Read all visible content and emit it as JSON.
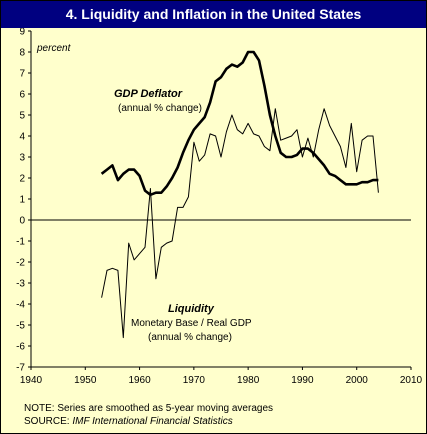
{
  "title": "4. Liquidity and Inflation in the United States",
  "colors": {
    "background": "#ffffcc",
    "title_bar": "#000080",
    "title_text": "#ffffff",
    "line": "#000000"
  },
  "chart_data": {
    "type": "line",
    "title": "4. Liquidity and Inflation in the United States",
    "ylabel": "percent",
    "xlabel": "",
    "xlim": [
      1940,
      2010
    ],
    "ylim": [
      -7,
      9
    ],
    "x_ticks": [
      1940,
      1950,
      1960,
      1970,
      1980,
      1990,
      2000,
      2010
    ],
    "y_ticks": [
      -7,
      -6,
      -5,
      -4,
      -3,
      -2,
      -1,
      0,
      1,
      2,
      3,
      4,
      5,
      6,
      7,
      8,
      9
    ],
    "grid": false,
    "zero_line": true,
    "series": [
      {
        "name": "GDP Deflator",
        "line_style": "thick",
        "x": [
          1953,
          1954,
          1955,
          1956,
          1957,
          1958,
          1959,
          1960,
          1961,
          1962,
          1963,
          1964,
          1965,
          1966,
          1967,
          1968,
          1969,
          1970,
          1971,
          1972,
          1973,
          1974,
          1975,
          1976,
          1977,
          1978,
          1979,
          1980,
          1981,
          1982,
          1983,
          1984,
          1985,
          1986,
          1987,
          1988,
          1989,
          1990,
          1991,
          1992,
          1993,
          1994,
          1995,
          1996,
          1997,
          1998,
          1999,
          2000,
          2001,
          2002,
          2003,
          2004
        ],
        "values": [
          2.2,
          2.4,
          2.6,
          1.9,
          2.2,
          2.4,
          2.4,
          2.1,
          1.4,
          1.2,
          1.3,
          1.3,
          1.6,
          2.0,
          2.5,
          3.2,
          3.8,
          4.3,
          4.6,
          4.9,
          5.6,
          6.6,
          6.8,
          7.2,
          7.4,
          7.3,
          7.5,
          8.0,
          8.0,
          7.6,
          6.4,
          5.0,
          4.0,
          3.2,
          3.0,
          3.0,
          3.1,
          3.4,
          3.4,
          3.2,
          2.9,
          2.6,
          2.2,
          2.1,
          1.9,
          1.7,
          1.7,
          1.7,
          1.8,
          1.8,
          1.9,
          1.9
        ]
      },
      {
        "name": "Liquidity",
        "line_style": "thin",
        "x": [
          1953,
          1954,
          1955,
          1956,
          1957,
          1958,
          1959,
          1960,
          1961,
          1962,
          1963,
          1964,
          1965,
          1966,
          1967,
          1968,
          1969,
          1970,
          1971,
          1972,
          1973,
          1974,
          1975,
          1976,
          1977,
          1978,
          1979,
          1980,
          1981,
          1982,
          1983,
          1984,
          1985,
          1986,
          1987,
          1988,
          1989,
          1990,
          1991,
          1992,
          1993,
          1994,
          1995,
          1996,
          1997,
          1998,
          1999,
          2000,
          2001,
          2002,
          2003,
          2004
        ],
        "values": [
          -3.7,
          -2.4,
          -2.3,
          -2.4,
          -5.6,
          -1.1,
          -1.9,
          -1.6,
          -1.3,
          1.5,
          -2.8,
          -1.3,
          -1.1,
          -1.0,
          0.6,
          0.6,
          1.1,
          3.7,
          2.8,
          3.1,
          4.1,
          4.0,
          3.0,
          4.2,
          5.0,
          4.3,
          4.1,
          4.6,
          4.1,
          4.0,
          3.5,
          3.3,
          5.3,
          3.8,
          3.9,
          4.0,
          4.3,
          3.0,
          3.9,
          3.0,
          4.3,
          5.3,
          4.5,
          4.0,
          3.5,
          2.5,
          4.6,
          2.3,
          3.8,
          4.0,
          4.0,
          1.3
        ]
      }
    ],
    "annotations": {
      "ylabel_text": "percent",
      "gdp_label": "GDP Deflator",
      "gdp_sub": "(annual % change)",
      "liq_label": "Liquidity",
      "liq_sub1": "Monetary Base / Real GDP",
      "liq_sub2": "(annual % change)"
    }
  },
  "notes": {
    "note": "NOTE: Series are smoothed as 5-year moving averages",
    "source_prefix": "SOURCE: ",
    "source_italic": "IMF International Financial Statistics"
  }
}
